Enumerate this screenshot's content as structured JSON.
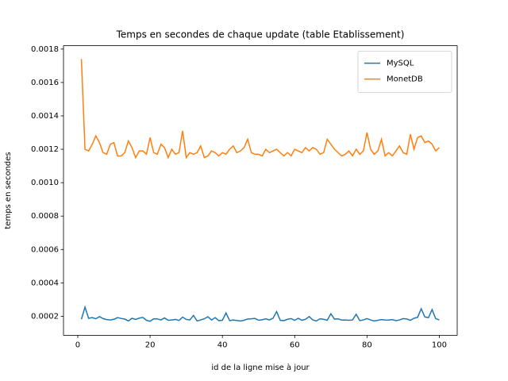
{
  "chart_data": {
    "type": "line",
    "title": "Temps en secondes de chaque update (table Etablissement)",
    "xlabel": "id de la ligne mise à jour",
    "ylabel": "temps en secondes",
    "x": [
      1,
      2,
      3,
      4,
      5,
      6,
      7,
      8,
      9,
      10,
      11,
      12,
      13,
      14,
      15,
      16,
      17,
      18,
      19,
      20,
      21,
      22,
      23,
      24,
      25,
      26,
      27,
      28,
      29,
      30,
      31,
      32,
      33,
      34,
      35,
      36,
      37,
      38,
      39,
      40,
      41,
      42,
      43,
      44,
      45,
      46,
      47,
      48,
      49,
      50,
      51,
      52,
      53,
      54,
      55,
      56,
      57,
      58,
      59,
      60,
      61,
      62,
      63,
      64,
      65,
      66,
      67,
      68,
      69,
      70,
      71,
      72,
      73,
      74,
      75,
      76,
      77,
      78,
      79,
      80,
      81,
      82,
      83,
      84,
      85,
      86,
      87,
      88,
      89,
      90,
      91,
      92,
      93,
      94,
      95,
      96,
      97,
      98,
      99,
      100
    ],
    "series": [
      {
        "name": "MySQL",
        "color": "#1f77b4",
        "values": [
          0.000182,
          0.000255,
          0.000188,
          0.000192,
          0.000185,
          0.000198,
          0.000186,
          0.00018,
          0.000178,
          0.000182,
          0.000192,
          0.000187,
          0.000183,
          0.000172,
          0.000188,
          0.000181,
          0.000189,
          0.000193,
          0.000176,
          0.00017,
          0.000185,
          0.000184,
          0.000178,
          0.00019,
          0.000176,
          0.000178,
          0.000181,
          0.000175,
          0.000195,
          0.000181,
          0.000178,
          0.000205,
          0.000172,
          0.000178,
          0.000185,
          0.000197,
          0.000178,
          0.000192,
          0.000174,
          0.000176,
          0.00022,
          0.000174,
          0.000178,
          0.000175,
          0.000172,
          0.000176,
          0.000184,
          0.000185,
          0.000187,
          0.000176,
          0.000179,
          0.000185,
          0.000178,
          0.000188,
          0.000228,
          0.000176,
          0.000174,
          0.000182,
          0.000186,
          0.000176,
          0.000188,
          0.000176,
          0.000182,
          0.000198,
          0.000178,
          0.000172,
          0.000185,
          0.000182,
          0.000176,
          0.000215,
          0.000183,
          0.000185,
          0.000177,
          0.000178,
          0.000176,
          0.000178,
          0.000212,
          0.000174,
          0.000178,
          0.000186,
          0.000178,
          0.000172,
          0.000176,
          0.00018,
          0.000178,
          0.000177,
          0.00018,
          0.000174,
          0.000178,
          0.000186,
          0.000184,
          0.000176,
          0.000188,
          0.000194,
          0.000245,
          0.000196,
          0.000192,
          0.00024,
          0.000186,
          0.000178
        ]
      },
      {
        "name": "MonetDB",
        "color": "#ff7f0e",
        "values": [
          0.00174,
          0.0012,
          0.00119,
          0.00123,
          0.00128,
          0.00124,
          0.00118,
          0.00117,
          0.00123,
          0.00124,
          0.00116,
          0.00116,
          0.00118,
          0.00125,
          0.00121,
          0.00115,
          0.00119,
          0.00119,
          0.00117,
          0.00127,
          0.00118,
          0.00117,
          0.00123,
          0.00121,
          0.00115,
          0.0012,
          0.00117,
          0.00118,
          0.00131,
          0.00115,
          0.00118,
          0.00117,
          0.00118,
          0.00122,
          0.00115,
          0.00116,
          0.00119,
          0.00118,
          0.00116,
          0.00118,
          0.00117,
          0.0012,
          0.00122,
          0.00118,
          0.00119,
          0.00121,
          0.00126,
          0.00118,
          0.00117,
          0.00117,
          0.00116,
          0.0012,
          0.00118,
          0.00119,
          0.0012,
          0.00118,
          0.00116,
          0.00118,
          0.00116,
          0.0012,
          0.00119,
          0.00118,
          0.00121,
          0.00119,
          0.00121,
          0.0012,
          0.00117,
          0.00118,
          0.00126,
          0.00123,
          0.0012,
          0.00118,
          0.00116,
          0.00117,
          0.00119,
          0.00116,
          0.0012,
          0.00117,
          0.00119,
          0.0013,
          0.0012,
          0.00117,
          0.00119,
          0.00126,
          0.00116,
          0.00118,
          0.00116,
          0.00119,
          0.00122,
          0.00118,
          0.00117,
          0.00129,
          0.0012,
          0.00127,
          0.00128,
          0.00124,
          0.00125,
          0.00123,
          0.00119,
          0.00121
        ]
      }
    ],
    "xlim": [
      -3.95,
      104.95
    ],
    "xticks": [
      0,
      20,
      40,
      60,
      80,
      100
    ],
    "ylim": [
      8.62e-05,
      0.00182
    ],
    "yticks": [
      0.0002,
      0.0004,
      0.0006,
      0.0008,
      {
        "value": 0.001,
        "label": "0.0010"
      },
      0.0012,
      0.0014,
      0.0016,
      0.0018
    ],
    "legend": "upper right"
  }
}
